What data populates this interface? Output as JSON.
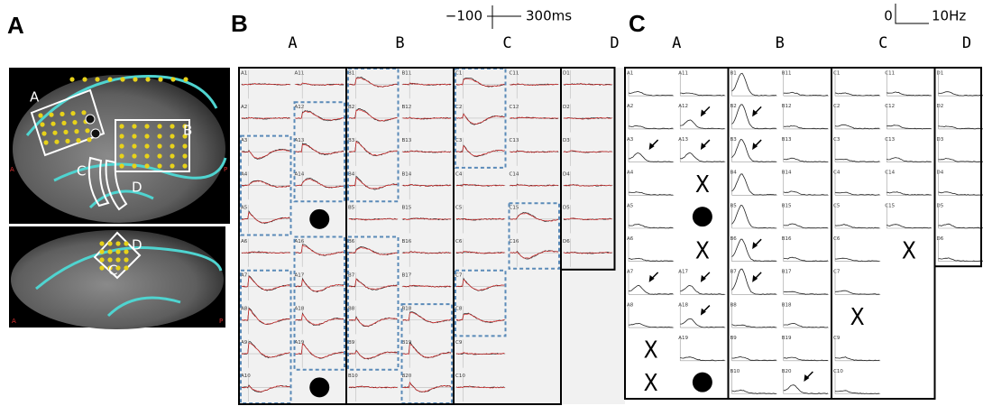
{
  "figure": {
    "panel_a": {
      "label": "A",
      "top_image": {
        "regions": [
          "A",
          "B",
          "C",
          "D"
        ],
        "anterior": "A",
        "posterior": "P"
      },
      "bottom_image": {
        "regions": [
          "C",
          "D"
        ],
        "anterior": "A",
        "posterior": "P"
      }
    },
    "panel_b": {
      "label": "B",
      "scale": {
        "amplitude": "−100",
        "time": "300ms"
      },
      "columns": [
        {
          "header": "A",
          "cells": [
            [
              "A1",
              "A2",
              "A3",
              "A4",
              "A5",
              "A6",
              "A7",
              "A8",
              "A9",
              "A10"
            ],
            [
              "A11",
              "A12",
              "A13",
              "A14",
              null,
              "A16",
              "A17",
              "A18",
              "A19",
              null
            ]
          ]
        },
        {
          "header": "B",
          "cells": [
            [
              "B1",
              "B2",
              "B3",
              "B4",
              "B5",
              "B6",
              "B7",
              "B8",
              "B9",
              "B10"
            ],
            [
              "B11",
              "B12",
              "B13",
              "B14",
              "B15",
              "B16",
              "B17",
              "B18",
              "B19",
              "B20"
            ]
          ]
        },
        {
          "header": "C",
          "cells": [
            [
              "C1",
              "C2",
              "C3",
              "C4",
              "C5",
              "C6",
              "C7",
              "C8",
              "C9",
              "C10"
            ],
            [
              "C11",
              "C12",
              "C13",
              "C14",
              "C15",
              "C16"
            ]
          ]
        },
        {
          "header": "D",
          "cells": [
            [
              "D1",
              "D2",
              "D3",
              "D4",
              "D5",
              "D6"
            ]
          ]
        }
      ]
    },
    "panel_c": {
      "label": "C",
      "scale": {
        "zero": "0",
        "frequency": "10Hz"
      },
      "columns": [
        {
          "header": "A",
          "cells": [
            [
              "A1",
              "A2",
              "A3",
              "A4",
              "A5",
              "A6",
              "A7",
              "A8",
              "X",
              "X"
            ],
            [
              "A11",
              "A12",
              "A13",
              "X",
              null,
              "X",
              "A17",
              "A18",
              "A19",
              null
            ]
          ]
        },
        {
          "header": "B",
          "cells": [
            [
              "B1",
              "B2",
              "B3",
              "B4",
              "B5",
              "B6",
              "B7",
              "B8",
              "B9",
              "B10"
            ],
            [
              "B11",
              "B12",
              "B13",
              "B14",
              "B15",
              "B16",
              "B17",
              "B18",
              "B19",
              "B20"
            ]
          ]
        },
        {
          "header": "C",
          "cells": [
            [
              "C1",
              "C2",
              "C3",
              "C4",
              "C5",
              "C6",
              "C7",
              "X",
              "C9",
              "C10"
            ],
            [
              "C11",
              "C12",
              "C13",
              "C14",
              "C15",
              "X"
            ]
          ]
        },
        {
          "header": "D",
          "cells": [
            [
              "D1",
              "D2",
              "D3",
              "D4",
              "D5",
              "D6"
            ]
          ]
        }
      ]
    }
  }
}
